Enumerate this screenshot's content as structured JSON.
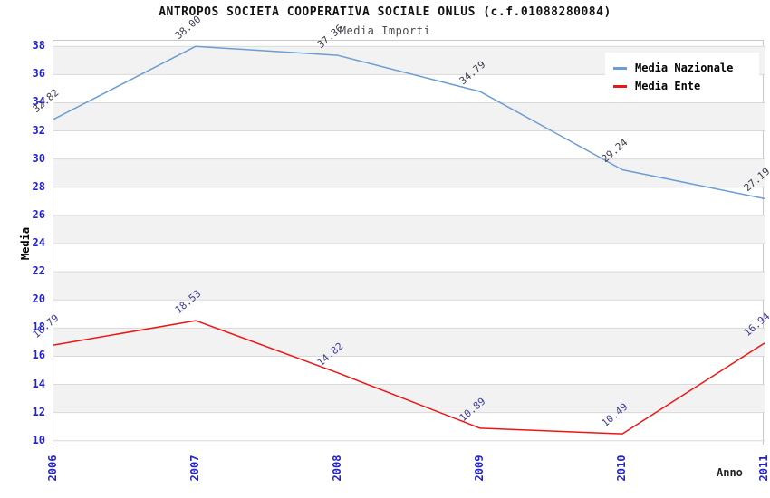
{
  "header": {
    "title": "ANTROPOS SOCIETA COOPERATIVA SOCIALE ONLUS (c.f.01088280084)",
    "subtitle": "Media Importi"
  },
  "legend": {
    "items": [
      {
        "label": "Media Nazionale",
        "color": "#6c9dd4"
      },
      {
        "label": "Media Ente",
        "color": "#ee1515"
      }
    ]
  },
  "axis": {
    "tick_color": "#2323cc",
    "ylabel": "Media",
    "xlabel": "Anno"
  },
  "chart_data": {
    "type": "line",
    "x": [
      "2006",
      "2007",
      "2008",
      "2009",
      "2010",
      "2011"
    ],
    "series": [
      {
        "name": "Media Nazionale",
        "color": "#6c9dd4",
        "label_color": "#3d3d4d",
        "values": [
          32.82,
          38.0,
          37.36,
          34.79,
          29.24,
          27.19
        ]
      },
      {
        "name": "Media Ente",
        "color": "#ee1515",
        "label_color": "#3d3d99",
        "values": [
          16.79,
          18.53,
          14.82,
          10.89,
          10.49,
          16.94
        ]
      }
    ],
    "title": "ANTROPOS SOCIETA COOPERATIVA SOCIALE ONLUS (c.f.01088280084)",
    "subtitle": "Media Importi",
    "xlabel": "Anno",
    "ylabel": "Media",
    "ylim": [
      9.6,
      38.4
    ],
    "yticks": [
      10,
      12,
      14,
      16,
      18,
      20,
      22,
      24,
      26,
      28,
      30,
      32,
      34,
      36,
      38
    ],
    "band_color": "#f2f2f2",
    "gridline_color": "#d9d9d9",
    "grid": true,
    "legend_position": "top-right"
  }
}
